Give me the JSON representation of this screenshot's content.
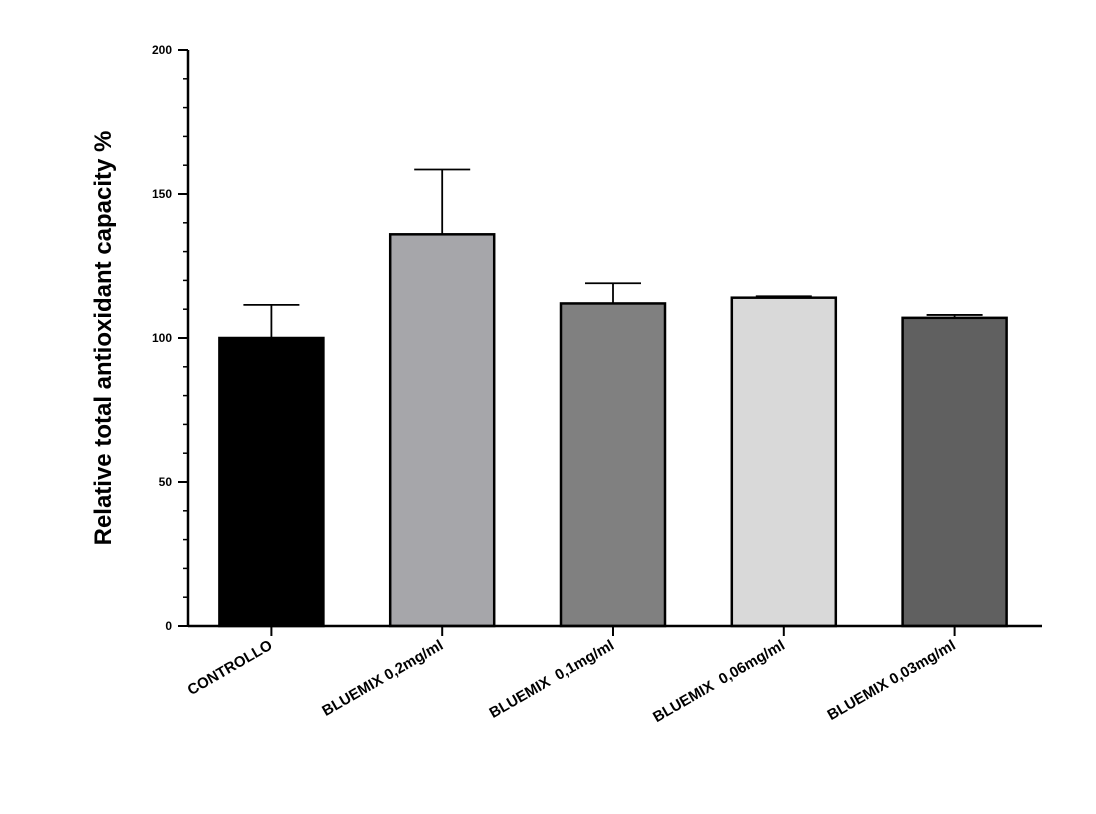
{
  "chart_data": {
    "type": "bar",
    "title": "",
    "xlabel": "",
    "ylabel": "Relative total antioxidant capacity %",
    "ylim": [
      0,
      200
    ],
    "yticks": [
      0,
      50,
      100,
      150,
      200
    ],
    "grid": false,
    "categories": [
      "CONTROLLO",
      "BLUEMIX 0,2mg/ml",
      "BLUEMIX  0,1mg/ml",
      "BLUEMIX  0,06mg/ml",
      "BLUEMIX 0,03mg/ml"
    ],
    "values": [
      100,
      136,
      112,
      114,
      107
    ],
    "errors": [
      11.5,
      22.5,
      7,
      0.5,
      1
    ],
    "colors": [
      "#000000",
      "#a6a6aa",
      "#808080",
      "#d9d9d9",
      "#606060"
    ]
  }
}
